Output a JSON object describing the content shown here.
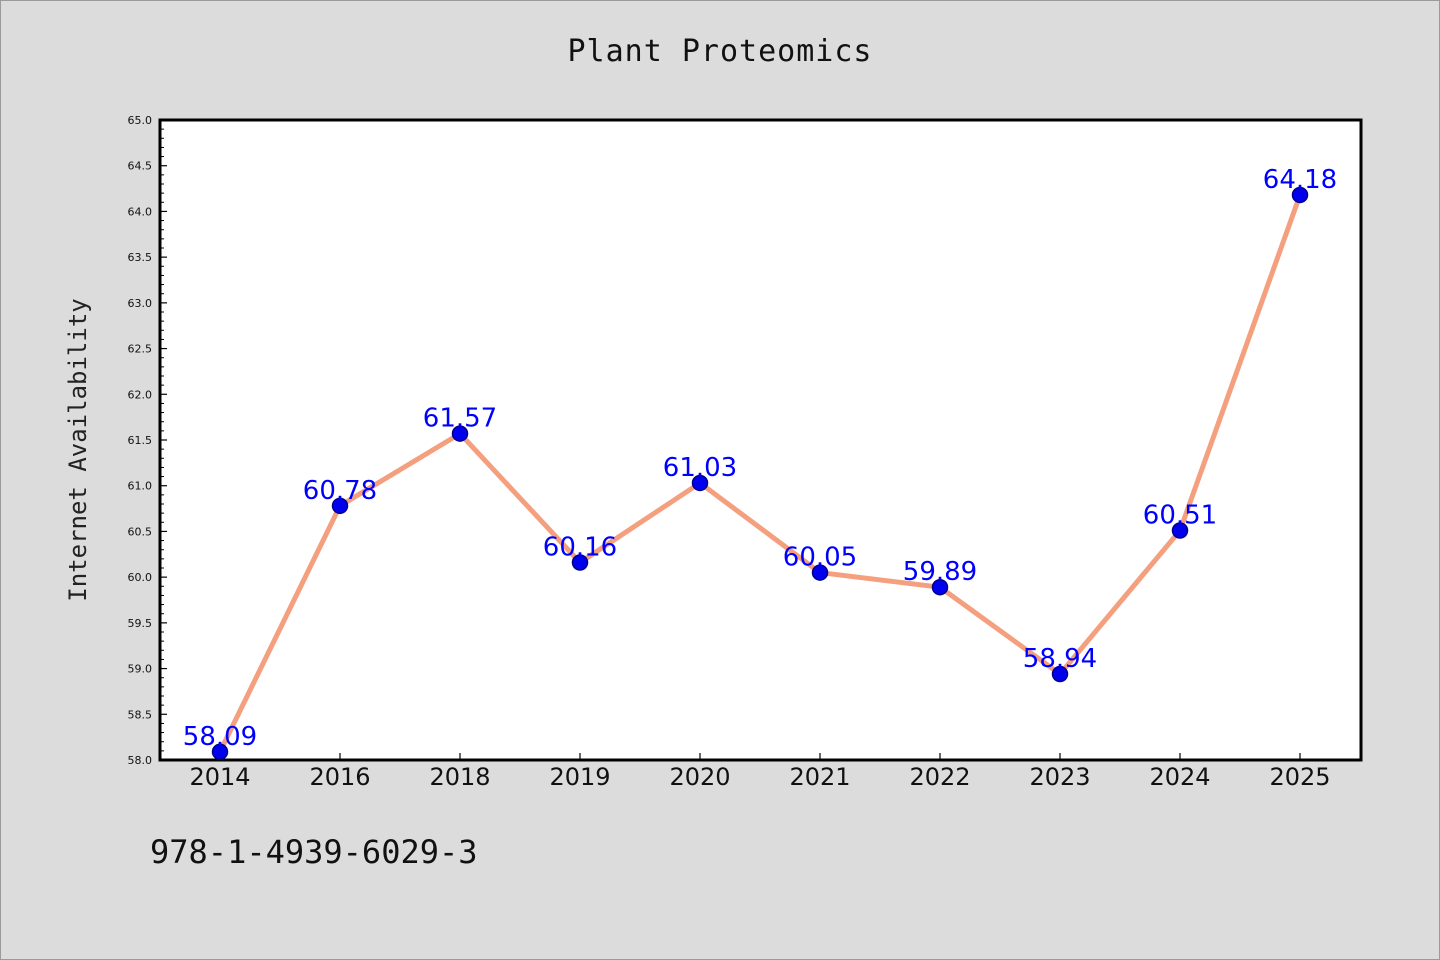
{
  "chart_data": {
    "type": "line",
    "title": "Plant Proteomics",
    "xlabel": "",
    "ylabel": "Internet Availability",
    "categories": [
      "2014",
      "2016",
      "2018",
      "2019",
      "2020",
      "2021",
      "2022",
      "2023",
      "2024",
      "2025"
    ],
    "series": [
      {
        "values": [
          58.09,
          60.78,
          61.57,
          60.16,
          61.03,
          60.05,
          59.89,
          58.94,
          60.51,
          64.18
        ]
      }
    ],
    "data_labels": [
      "58.09",
      "60.78",
      "61.57",
      "60.16",
      "61.03",
      "60.05",
      "59.89",
      "58.94",
      "60.51",
      "64.18"
    ],
    "ylim": [
      58.0,
      65.0
    ],
    "y_ticks": [
      "58.0",
      "58.5",
      "59.0",
      "59.5",
      "60.0",
      "60.5",
      "61.0",
      "61.5",
      "62.0",
      "62.5",
      "63.0",
      "63.5",
      "64.0",
      "64.5",
      "65.0"
    ],
    "grid": false,
    "legend": "none",
    "colors": {
      "line": "#f4a07f",
      "marker": "#0000ee",
      "marker_edge": "#00008b",
      "label": "#0000ff",
      "axes": "#000000",
      "background": "#dcdcdc",
      "plot_background": "#ffffff"
    }
  },
  "footer": {
    "isbn": "978-1-4939-6029-3"
  }
}
